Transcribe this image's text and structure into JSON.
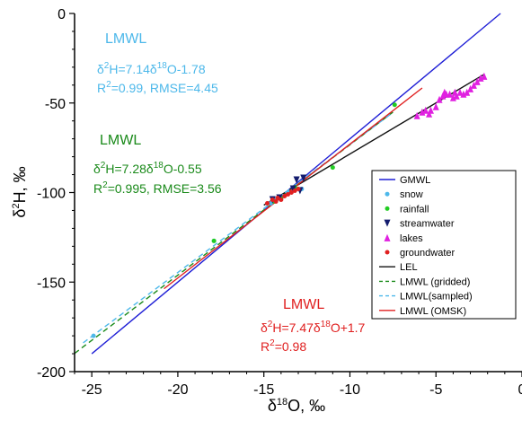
{
  "chart_data": {
    "type": "scatter",
    "xlabel": "δ18O, ‰",
    "ylabel": "δ2H, ‰",
    "xlim": [
      -26,
      0
    ],
    "ylim": [
      -200,
      0
    ],
    "xticks": [
      -25,
      -20,
      -15,
      -10,
      -5,
      0
    ],
    "yticks": [
      -200,
      -150,
      -100,
      -50,
      0
    ],
    "x_tick_labels": [
      "-25",
      "-20",
      "-15",
      "-10",
      "-5",
      "0"
    ],
    "y_tick_labels": [
      "-200",
      "-150",
      "-100",
      "-50",
      "0"
    ],
    "grid": false,
    "legend_position": "right",
    "series": [
      {
        "name": "GMWL",
        "kind": "line",
        "color": "#1f1fd6",
        "dash": "solid",
        "x": [
          -25,
          -1.25
        ],
        "y": [
          -190,
          0
        ]
      },
      {
        "name": "snow",
        "kind": "points",
        "marker": "circle",
        "color": "#4db8ea",
        "points": [
          [
            -24.9,
            -180
          ],
          [
            -17.9,
            -127
          ],
          [
            -14.6,
            -106
          ],
          [
            -14.3,
            -104
          ],
          [
            -13.9,
            -102
          ],
          [
            -13.6,
            -100
          ],
          [
            -12.8,
            -98
          ]
        ]
      },
      {
        "name": "rainfall",
        "kind": "points",
        "marker": "circle",
        "color": "#22cc22",
        "points": [
          [
            -17.9,
            -127
          ],
          [
            -14.4,
            -105
          ],
          [
            -14.0,
            -103
          ],
          [
            -11.0,
            -86
          ],
          [
            -7.4,
            -51
          ],
          [
            -13.2,
            -97
          ]
        ]
      },
      {
        "name": "streamwater",
        "kind": "points",
        "marker": "triangle-down",
        "color": "#141c6e",
        "points": [
          [
            -13.1,
            -93
          ],
          [
            -12.7,
            -92
          ],
          [
            -13.3,
            -98
          ],
          [
            -12.9,
            -99
          ],
          [
            -14.1,
            -103
          ],
          [
            -14.5,
            -104
          ]
        ]
      },
      {
        "name": "lakes",
        "kind": "points",
        "marker": "triangle-up",
        "color": "#e020e0",
        "points": [
          [
            -6.1,
            -57
          ],
          [
            -5.8,
            -55
          ],
          [
            -5.6,
            -54
          ],
          [
            -5.4,
            -56
          ],
          [
            -5.3,
            -54
          ],
          [
            -5.0,
            -52
          ],
          [
            -4.8,
            -48
          ],
          [
            -4.6,
            -46
          ],
          [
            -4.4,
            -45
          ],
          [
            -4.2,
            -45
          ],
          [
            -4.0,
            -47
          ],
          [
            -3.8,
            -46
          ],
          [
            -3.6,
            -44
          ],
          [
            -3.4,
            -45
          ],
          [
            -3.2,
            -44
          ],
          [
            -3.0,
            -42
          ],
          [
            -2.8,
            -40
          ],
          [
            -2.6,
            -38
          ],
          [
            -2.4,
            -36
          ],
          [
            -2.2,
            -35
          ],
          [
            -4.5,
            -44
          ],
          [
            -3.9,
            -44
          ]
        ]
      },
      {
        "name": "groundwater",
        "kind": "points",
        "marker": "circle",
        "color": "#e02020",
        "points": [
          [
            -14.8,
            -106
          ],
          [
            -14.5,
            -104
          ],
          [
            -14.2,
            -103
          ],
          [
            -14.0,
            -104
          ],
          [
            -13.8,
            -102
          ],
          [
            -13.6,
            -101
          ],
          [
            -13.4,
            -100
          ],
          [
            -13.2,
            -99
          ],
          [
            -13.0,
            -98
          ],
          [
            -14.3,
            -105
          ]
        ]
      },
      {
        "name": "LEL",
        "kind": "line",
        "color": "#111111",
        "dash": "solid",
        "x": [
          -15,
          -2.2
        ],
        "y": [
          -107,
          -34
        ]
      },
      {
        "name": "LMWL (gridded)",
        "kind": "line",
        "color": "#1a8a1a",
        "dash": "dashed",
        "x": [
          -26,
          -7.5
        ],
        "y": [
          -189.8,
          -55.1
        ]
      },
      {
        "name": "LMWL(sampled)",
        "kind": "line",
        "color": "#4db8ea",
        "dash": "dashed",
        "x": [
          -25.5,
          -7.5
        ],
        "y": [
          -183.9,
          -55.3
        ]
      },
      {
        "name": "LMWL (OMSK)",
        "kind": "line",
        "color": "#e02020",
        "dash": "solid",
        "x": [
          -20.8,
          -5.8
        ],
        "y": [
          -153.7,
          -41.6
        ]
      }
    ],
    "annotations": [
      {
        "id": "sampled",
        "color": "#4db8ea",
        "title": "LMWL",
        "equation": {
          "a": "δ",
          "b": "2",
          "c": "H=7.14δ",
          "d": "18",
          "e": "O-1.78"
        },
        "stats": {
          "a": "R",
          "b": "2",
          "c": "=0.99, RMSE=4.45"
        }
      },
      {
        "id": "gridded",
        "color": "#1a8a1a",
        "title": "LMWL",
        "equation": {
          "a": "δ",
          "b": "2",
          "c": "H=7.28δ",
          "d": "18",
          "e": "O-0.55"
        },
        "stats": {
          "a": "R",
          "b": "2",
          "c": "=0.995, RMSE=3.56"
        }
      },
      {
        "id": "omsk",
        "color": "#e02020",
        "title": "LMWL",
        "equation": {
          "a": "δ",
          "b": "2",
          "c": "H=7.47δ",
          "d": "18",
          "e": "O+1.7"
        },
        "stats": {
          "a": "R",
          "b": "2",
          "c": "=0.98"
        }
      }
    ]
  },
  "labels": {
    "x_axis": {
      "a": "δ",
      "b": "18",
      "c": "O, ‰"
    },
    "y_axis": {
      "a": "δ",
      "b": "2",
      "c": "H, ‰"
    }
  }
}
